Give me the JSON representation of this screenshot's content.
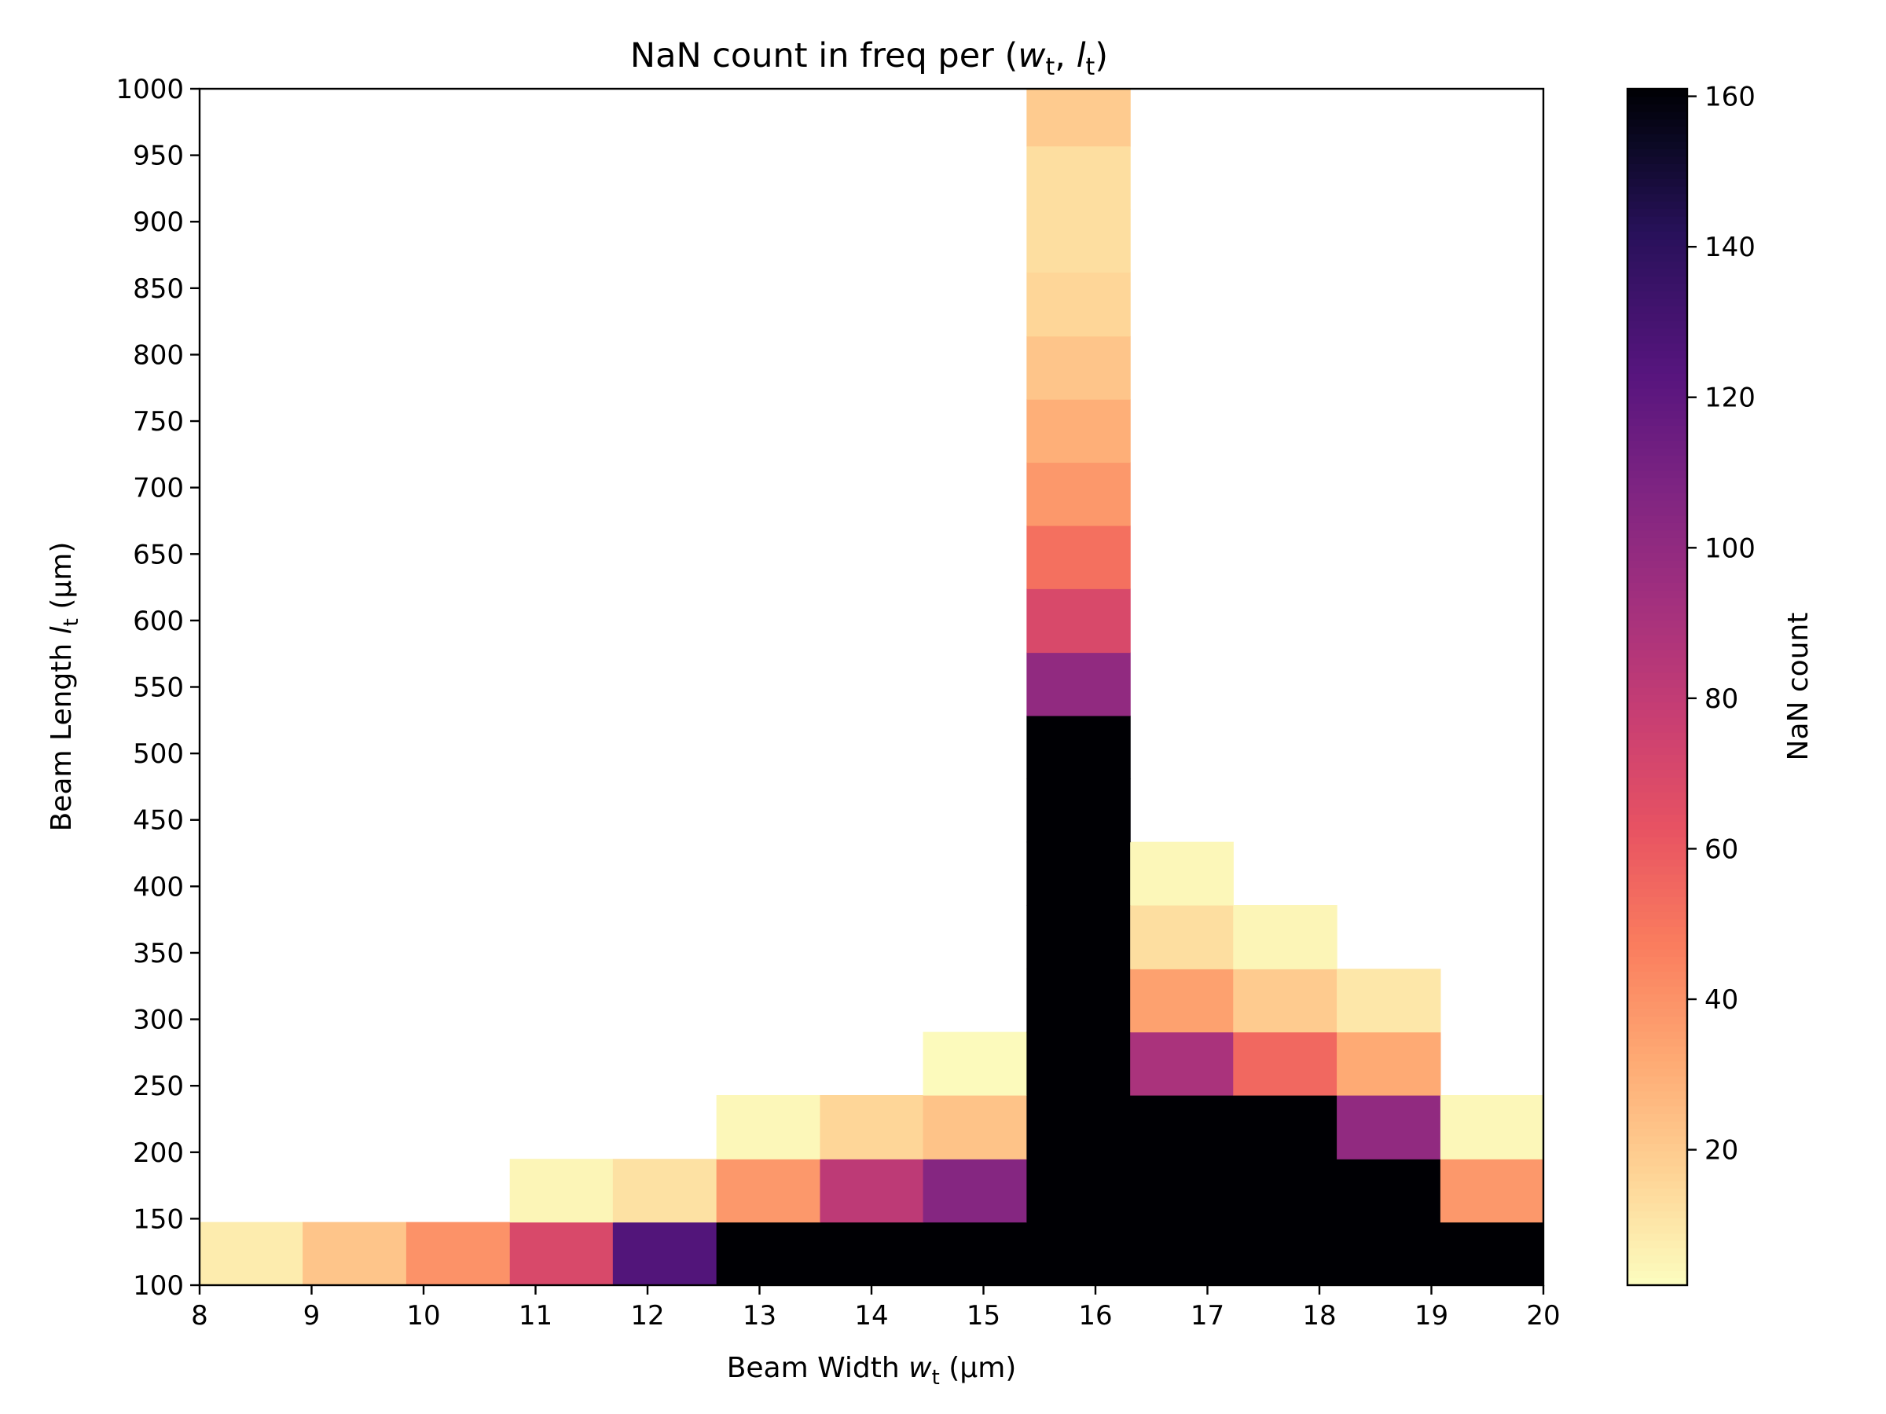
{
  "chart_data": {
    "type": "heatmap",
    "title": "NaN count in freq per (w_t, l_t)",
    "title_parts": {
      "prefix": "NaN count in freq per (",
      "w": "w",
      "sep": ", ",
      "l": "l",
      "sub": "t",
      "suffix": ")"
    },
    "xlabel": "Beam Width w_t (μm)",
    "xlabel_parts": {
      "prefix": "Beam Width ",
      "var": "w",
      "sub": "t",
      "suffix": " (μm)"
    },
    "ylabel": "Beam Length l_t (μm)",
    "ylabel_parts": {
      "prefix": "Beam Length ",
      "var": "l",
      "sub": "t",
      "suffix": " (μm)"
    },
    "colorbar_label": "NaN count",
    "colormap": "magma_r",
    "xlim": [
      8,
      20
    ],
    "ylim": [
      100,
      1000
    ],
    "clim": [
      2,
      161
    ],
    "x_ticks": [
      8,
      9,
      10,
      11,
      12,
      13,
      14,
      15,
      16,
      17,
      18,
      19,
      20
    ],
    "y_ticks": [
      100,
      150,
      200,
      250,
      300,
      350,
      400,
      450,
      500,
      550,
      600,
      650,
      700,
      750,
      800,
      850,
      900,
      950,
      1000
    ],
    "colorbar_ticks": [
      20,
      40,
      60,
      80,
      100,
      120,
      140,
      160
    ],
    "grid": false,
    "x_centers": [
      8.46,
      9.38,
      10.31,
      11.23,
      12.15,
      13.08,
      14.0,
      14.92,
      15.85,
      16.77,
      17.69,
      18.62,
      19.54
    ],
    "y_centers": [
      124,
      171,
      219,
      267,
      314,
      362,
      410,
      457,
      505,
      552,
      600,
      648,
      695,
      743,
      790,
      838,
      886,
      933,
      981
    ],
    "cells": [
      [
        0,
        0,
        8
      ],
      [
        1,
        0,
        22
      ],
      [
        2,
        0,
        40
      ],
      [
        3,
        0,
        70
      ],
      [
        4,
        0,
        125
      ],
      [
        5,
        0,
        161
      ],
      [
        6,
        0,
        161
      ],
      [
        7,
        0,
        161
      ],
      [
        8,
        0,
        161
      ],
      [
        9,
        0,
        161
      ],
      [
        10,
        0,
        161
      ],
      [
        11,
        0,
        161
      ],
      [
        12,
        0,
        161
      ],
      [
        3,
        1,
        5
      ],
      [
        4,
        1,
        12
      ],
      [
        5,
        1,
        38
      ],
      [
        6,
        1,
        82
      ],
      [
        7,
        1,
        105
      ],
      [
        8,
        1,
        161
      ],
      [
        9,
        1,
        161
      ],
      [
        10,
        1,
        161
      ],
      [
        11,
        1,
        161
      ],
      [
        12,
        1,
        38
      ],
      [
        5,
        2,
        4
      ],
      [
        6,
        2,
        16
      ],
      [
        7,
        2,
        23
      ],
      [
        8,
        2,
        161
      ],
      [
        9,
        2,
        161
      ],
      [
        10,
        2,
        161
      ],
      [
        11,
        2,
        100
      ],
      [
        12,
        2,
        4
      ],
      [
        7,
        3,
        3
      ],
      [
        8,
        3,
        161
      ],
      [
        9,
        3,
        90
      ],
      [
        10,
        3,
        55
      ],
      [
        11,
        3,
        32
      ],
      [
        8,
        4,
        161
      ],
      [
        9,
        4,
        35
      ],
      [
        10,
        4,
        20
      ],
      [
        11,
        4,
        10
      ],
      [
        8,
        5,
        161
      ],
      [
        9,
        5,
        13
      ],
      [
        10,
        5,
        5
      ],
      [
        8,
        6,
        161
      ],
      [
        9,
        6,
        4
      ],
      [
        8,
        7,
        161
      ],
      [
        8,
        8,
        161
      ],
      [
        8,
        9,
        100
      ],
      [
        8,
        10,
        70
      ],
      [
        8,
        11,
        52
      ],
      [
        8,
        12,
        38
      ],
      [
        8,
        13,
        30
      ],
      [
        8,
        14,
        22
      ],
      [
        8,
        15,
        16
      ],
      [
        8,
        16,
        13
      ],
      [
        8,
        17,
        13
      ],
      [
        8,
        18,
        20
      ]
    ]
  }
}
